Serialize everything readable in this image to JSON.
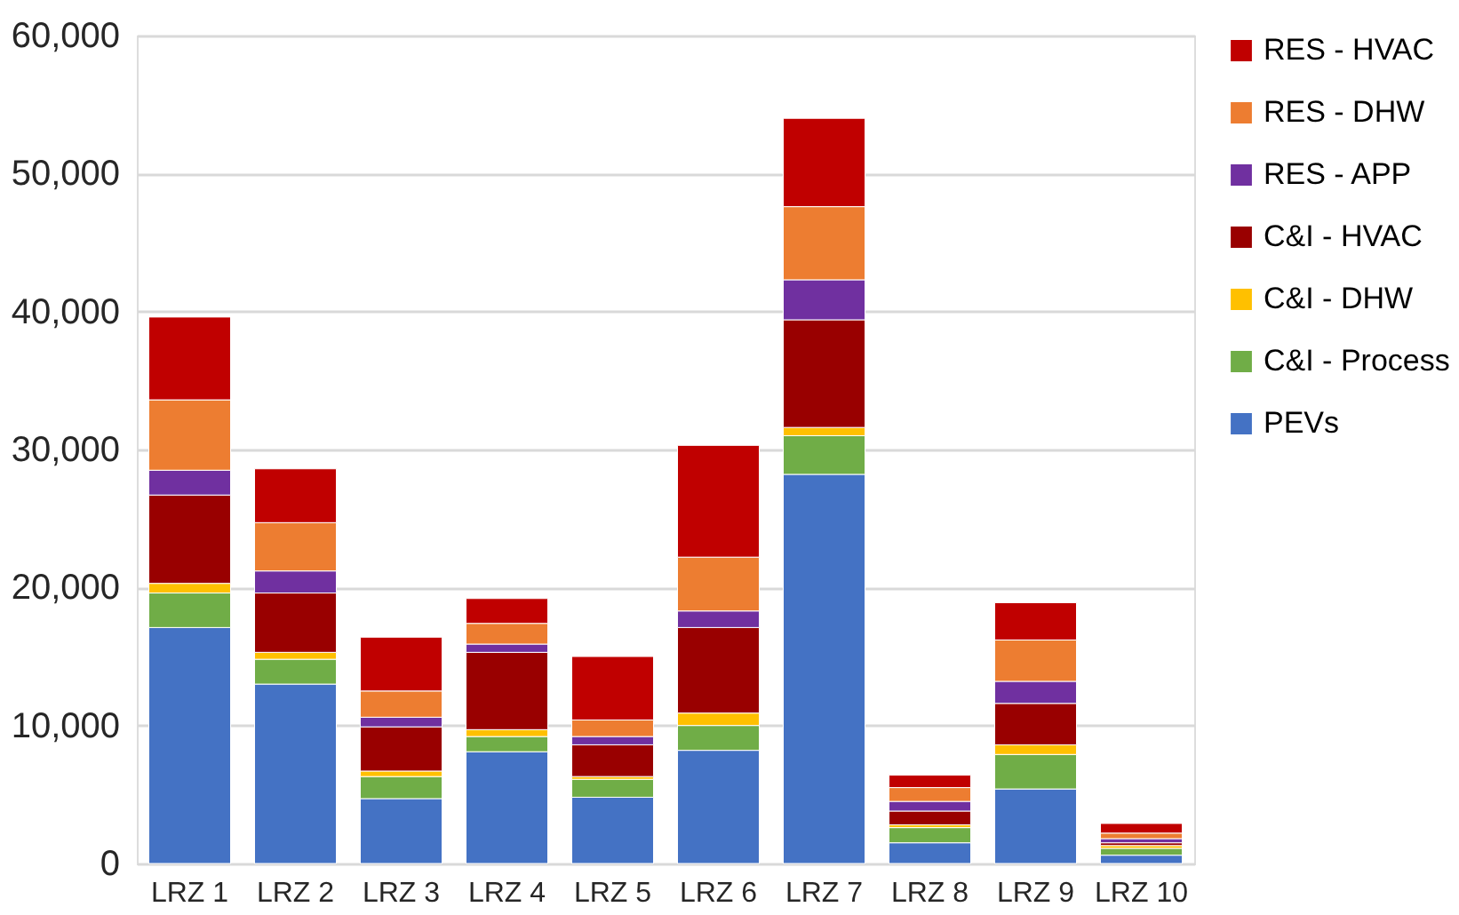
{
  "chart_data": {
    "type": "bar",
    "stacked": true,
    "categories": [
      "LRZ 1",
      "LRZ 2",
      "LRZ 3",
      "LRZ 4",
      "LRZ 5",
      "LRZ 6",
      "LRZ 7",
      "LRZ 8",
      "LRZ 9",
      "LRZ 10"
    ],
    "series": [
      {
        "name": "PEVs",
        "color": "#4472c4",
        "values": [
          17100,
          13000,
          4700,
          8100,
          4800,
          8200,
          28200,
          1500,
          5400,
          600
        ]
      },
      {
        "name": "C&I - Process",
        "color": "#70ad47",
        "values": [
          2500,
          1800,
          1600,
          1100,
          1300,
          1800,
          2800,
          1100,
          2500,
          500
        ]
      },
      {
        "name": "C&I - DHW",
        "color": "#ffc000",
        "values": [
          700,
          500,
          400,
          500,
          200,
          900,
          600,
          200,
          700,
          200
        ]
      },
      {
        "name": "C&I - HVAC",
        "color": "#990000",
        "values": [
          6400,
          4300,
          3200,
          5600,
          2300,
          6200,
          7800,
          1000,
          3000,
          200
        ]
      },
      {
        "name": "RES - APP",
        "color": "#7030a0",
        "values": [
          1800,
          1600,
          700,
          600,
          600,
          1200,
          2900,
          700,
          1600,
          300
        ]
      },
      {
        "name": "RES - DHW",
        "color": "#ed7d31",
        "values": [
          5100,
          3500,
          1900,
          1500,
          1200,
          3900,
          5300,
          1000,
          3000,
          400
        ]
      },
      {
        "name": "RES - HVAC",
        "color": "#c00000",
        "values": [
          6000,
          3900,
          3900,
          1800,
          4600,
          8100,
          6400,
          900,
          2700,
          700
        ]
      }
    ],
    "ylim": [
      0,
      60000
    ],
    "yticks": [
      {
        "value": 0,
        "label": "0"
      },
      {
        "value": 10000,
        "label": "10,000"
      },
      {
        "value": 20000,
        "label": "20,000"
      },
      {
        "value": 30000,
        "label": "30,000"
      },
      {
        "value": 40000,
        "label": "40,000"
      },
      {
        "value": 50000,
        "label": "50,000"
      },
      {
        "value": 60000,
        "label": "60,000"
      }
    ],
    "grid": "y",
    "legend": "right"
  }
}
